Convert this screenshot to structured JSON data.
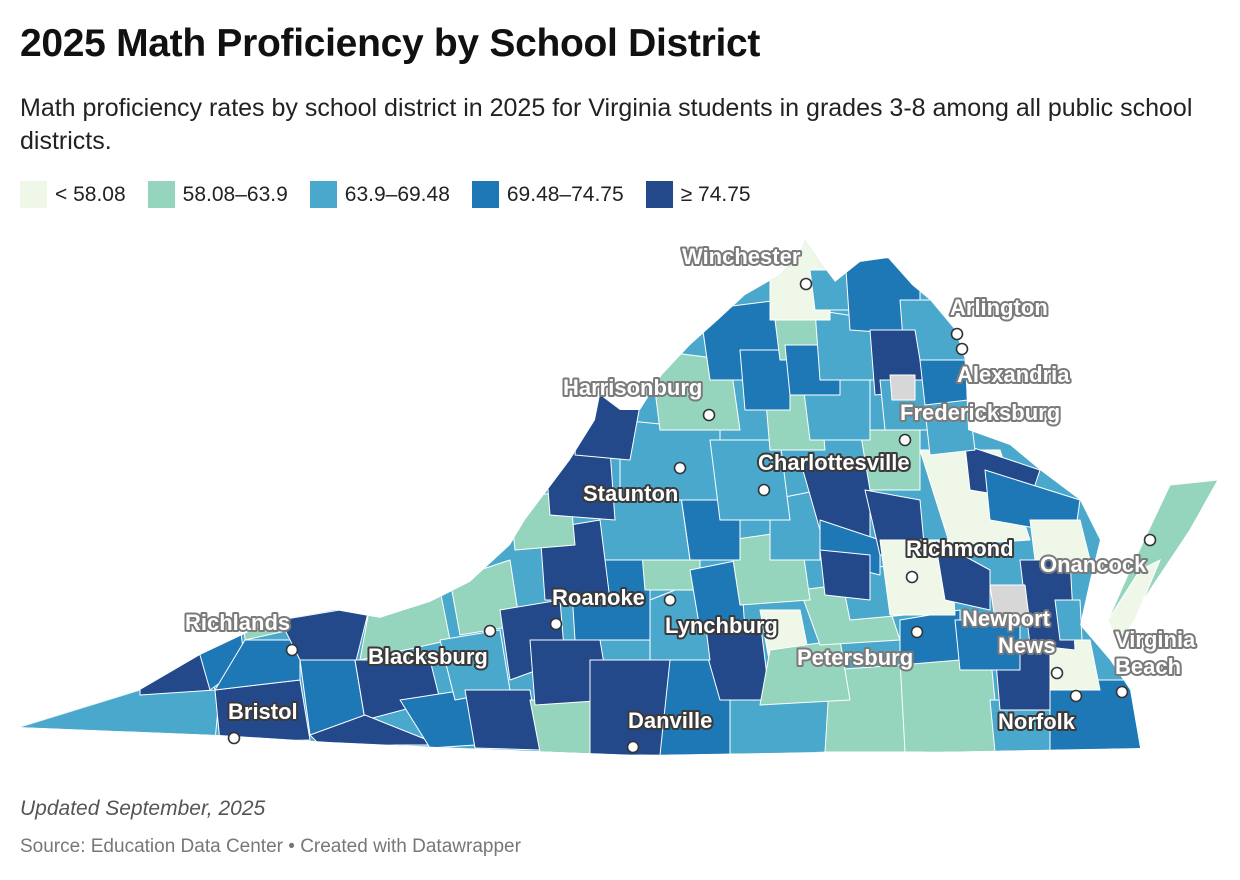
{
  "title": "2025 Math Proficiency by School District",
  "subtitle": "Math proficiency rates by school district in 2025 for Virginia students in grades 3-8 among all public school districts.",
  "legend": [
    {
      "label": "< 58.08",
      "color": "#eff8e8"
    },
    {
      "label": "58.08–63.9",
      "color": "#96d5bd"
    },
    {
      "label": "63.9–69.48",
      "color": "#4aa8cc"
    },
    {
      "label": "69.48–74.75",
      "color": "#1f78b6"
    },
    {
      "label": "≥ 74.75",
      "color": "#23498a"
    }
  ],
  "no_data_color": "#d7d7d7",
  "cities": [
    {
      "name": "Winchester"
    },
    {
      "name": "Arlington"
    },
    {
      "name": "Alexandria"
    },
    {
      "name": "Harrisonburg"
    },
    {
      "name": "Fredericksburg"
    },
    {
      "name": "Charlottesville"
    },
    {
      "name": "Staunton"
    },
    {
      "name": "Richmond"
    },
    {
      "name": "Onancock"
    },
    {
      "name": "Roanoke"
    },
    {
      "name": "Lynchburg"
    },
    {
      "name": "Richlands"
    },
    {
      "name": "Blacksburg"
    },
    {
      "name": "Newport News"
    },
    {
      "name": "Virginia Beach"
    },
    {
      "name": "Petersburg"
    },
    {
      "name": "Bristol"
    },
    {
      "name": "Danville"
    },
    {
      "name": "Norfolk"
    }
  ],
  "notes": "Updated September, 2025",
  "source": "Source: Education Data Center • Created with Datawrapper"
}
